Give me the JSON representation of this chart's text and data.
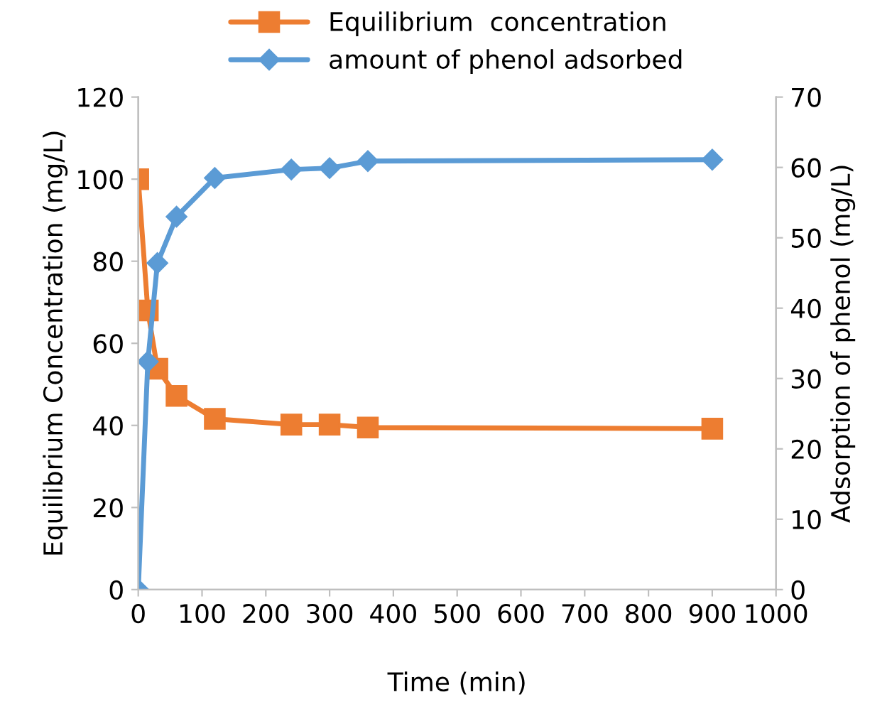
{
  "chart_data": {
    "type": "line",
    "xlabel": "Time (min)",
    "ylabel": "Equilibrium Concentration (mg/L)",
    "y2label": "Adsorption of phenol (mg/L)",
    "x": [
      0,
      15,
      30,
      60,
      120,
      240,
      300,
      360,
      900
    ],
    "series": [
      {
        "name": "Equilibrium  concentration",
        "color": "#ed7d31",
        "marker": "square",
        "values": [
          100,
          68,
          53.8,
          47.2,
          41.6,
          40.2,
          40.2,
          39.5,
          39.2
        ]
      },
      {
        "name": "amount of phenol adsorbed",
        "color": "#5b9bd5",
        "marker": "diamond",
        "axis": "y2",
        "values": [
          0,
          32.4,
          46.4,
          53,
          58.5,
          59.7,
          59.9,
          60.9,
          61.1
        ]
      }
    ],
    "xlim": [
      0,
      1000
    ],
    "xticks": [
      0,
      100,
      200,
      300,
      400,
      500,
      600,
      700,
      800,
      900,
      1000
    ],
    "ylim": [
      0,
      120
    ],
    "yticks": [
      0,
      20,
      40,
      60,
      80,
      100,
      120
    ],
    "y2lim": [
      0,
      70
    ],
    "y2ticks": [
      0,
      10,
      20,
      30,
      40,
      50,
      60,
      70
    ],
    "grid": false,
    "legend": "top"
  }
}
